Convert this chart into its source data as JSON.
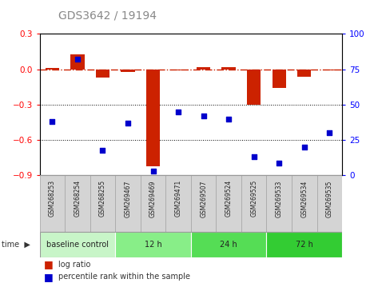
{
  "title": "GDS3642 / 19194",
  "samples": [
    "GSM268253",
    "GSM268254",
    "GSM268255",
    "GSM269467",
    "GSM269469",
    "GSM269471",
    "GSM269507",
    "GSM269524",
    "GSM269525",
    "GSM269533",
    "GSM269534",
    "GSM269535"
  ],
  "log_ratio": [
    0.01,
    0.13,
    -0.07,
    -0.02,
    -0.82,
    -0.01,
    0.02,
    0.02,
    -0.3,
    -0.16,
    -0.06,
    -0.01
  ],
  "percentile_rank": [
    38,
    82,
    18,
    37,
    3,
    45,
    42,
    40,
    13,
    9,
    20,
    30
  ],
  "ylim_left": [
    -0.9,
    0.3
  ],
  "ylim_right": [
    0,
    100
  ],
  "yticks_left": [
    -0.9,
    -0.6,
    -0.3,
    0.0,
    0.3
  ],
  "yticks_right": [
    0,
    25,
    50,
    75,
    100
  ],
  "groups": [
    {
      "label": "baseline control",
      "start": 0,
      "end": 3,
      "color": "#c8f5c8"
    },
    {
      "label": "12 h",
      "start": 3,
      "end": 6,
      "color": "#88ee88"
    },
    {
      "label": "24 h",
      "start": 6,
      "end": 9,
      "color": "#55dd55"
    },
    {
      "label": "72 h",
      "start": 9,
      "end": 12,
      "color": "#33cc33"
    }
  ],
  "bar_color": "#cc2200",
  "dot_color": "#0000cc",
  "sample_box_color": "#d4d4d4",
  "sample_box_edge": "#aaaaaa",
  "time_label": "time"
}
